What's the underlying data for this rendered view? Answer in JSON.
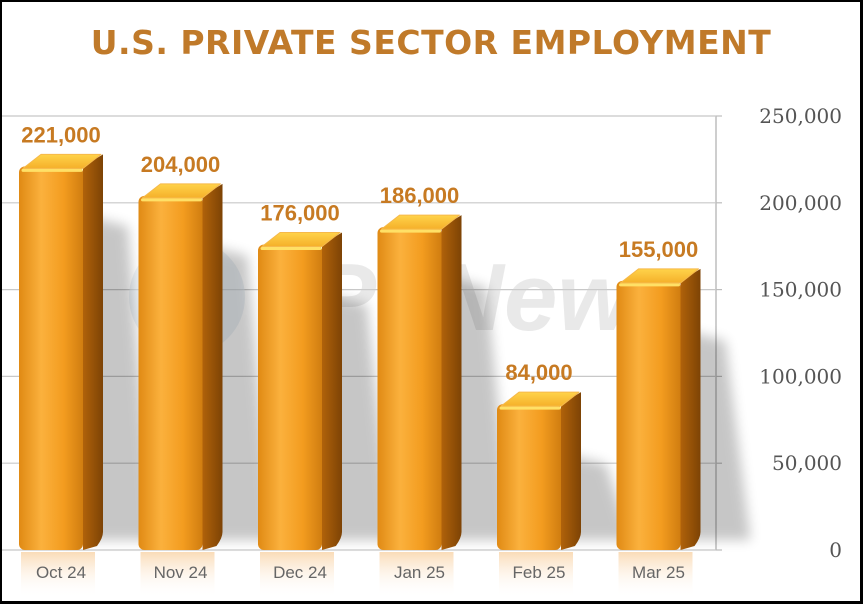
{
  "chart_data": {
    "type": "bar",
    "title": "U.S. PRIVATE SECTOR EMPLOYMENT",
    "categories": [
      "Oct 24",
      "Nov 24",
      "Dec 24",
      "Jan 25",
      "Feb 25",
      "Mar 25"
    ],
    "values": [
      221000,
      204000,
      176000,
      186000,
      84000,
      155000
    ],
    "data_labels": [
      "221,000",
      "204,000",
      "176,000",
      "186,000",
      "84,000",
      "155,000"
    ],
    "ylim": [
      0,
      250000
    ],
    "yticks": [
      0,
      50000,
      100000,
      150000,
      200000,
      250000
    ],
    "ytick_labels": [
      "0",
      "50,000",
      "100,000",
      "150,000",
      "200,000",
      "250,000"
    ],
    "xlabel": "",
    "ylabel": "",
    "grid": true,
    "y_axis_side": "right",
    "bar_color": "#f29a1e",
    "title_color": "#c07a2a"
  },
  "watermark": "PTNews"
}
